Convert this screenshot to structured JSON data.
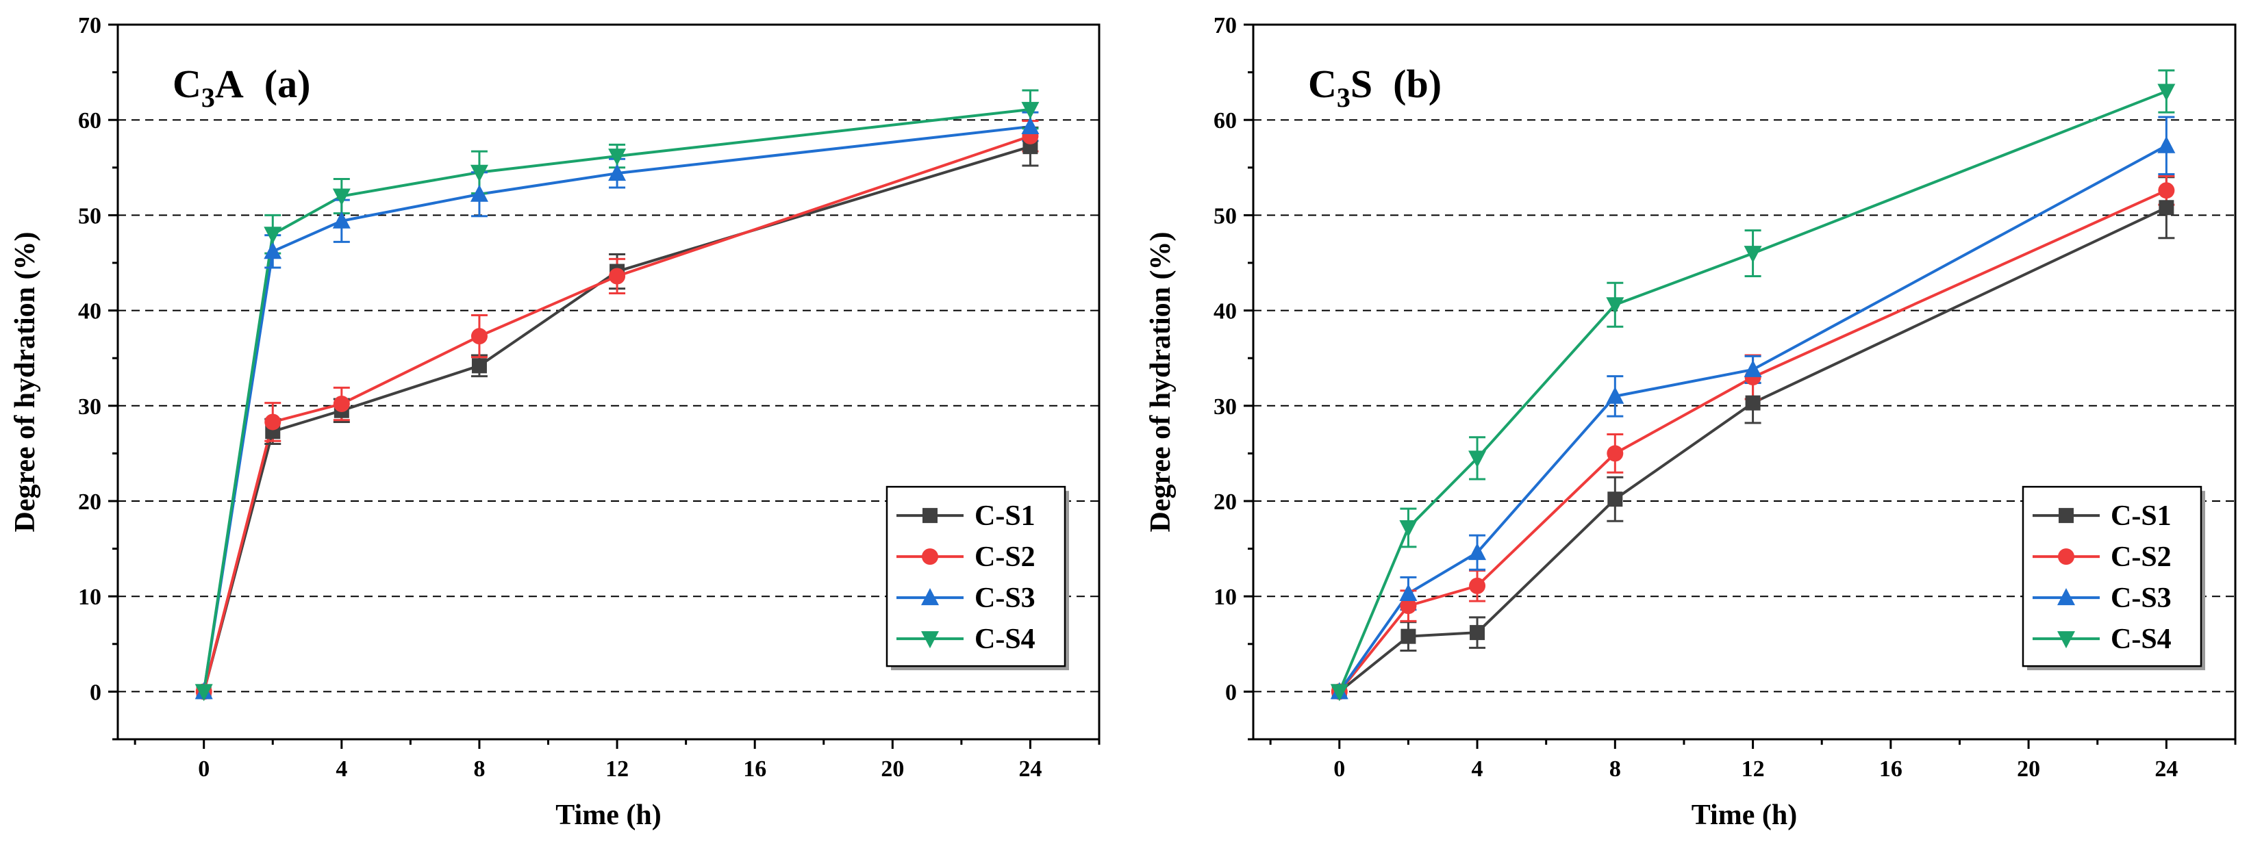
{
  "chart_data": [
    {
      "type": "line",
      "panel_label": "(a)",
      "title_main": "C",
      "title_sub": "3",
      "title_rest": "A",
      "xlabel": "Time (h)",
      "ylabel": "Degree of hydration (%)",
      "xlim": [
        -2.5,
        26
      ],
      "ylim": [
        -5,
        70
      ],
      "xticks": [
        0,
        4,
        8,
        12,
        16,
        20,
        24
      ],
      "yticks": [
        0,
        10,
        20,
        30,
        40,
        50,
        60,
        70
      ],
      "grid": "horizontal dashed",
      "legend_position": "bottom-right",
      "x": [
        0,
        2,
        4,
        8,
        12,
        24
      ],
      "series": [
        {
          "name": "C-S1",
          "color": "#404040",
          "marker": "square",
          "values": [
            0,
            27.3,
            29.5,
            34.2,
            44.1,
            57.2
          ],
          "errors": [
            0,
            1.3,
            1.2,
            1.1,
            1.8,
            2.0
          ]
        },
        {
          "name": "C-S2",
          "color": "#ef3b3b",
          "marker": "circle",
          "values": [
            0,
            28.3,
            30.2,
            37.3,
            43.6,
            58.3
          ],
          "errors": [
            0,
            2.0,
            1.7,
            2.2,
            1.8,
            1.6
          ]
        },
        {
          "name": "C-S3",
          "color": "#1f6fd1",
          "marker": "triangle-up",
          "values": [
            0,
            46.2,
            49.4,
            52.2,
            54.4,
            59.3
          ],
          "errors": [
            0,
            1.7,
            2.2,
            2.3,
            1.5,
            1.5
          ]
        },
        {
          "name": "C-S4",
          "color": "#1aa36b",
          "marker": "triangle-down",
          "values": [
            0,
            48.0,
            52.0,
            54.5,
            56.2,
            61.1
          ],
          "errors": [
            0,
            2.0,
            1.8,
            2.2,
            1.2,
            2.0
          ]
        }
      ]
    },
    {
      "type": "line",
      "panel_label": "(b)",
      "title_main": "C",
      "title_sub": "3",
      "title_rest": "S",
      "xlabel": "Time (h)",
      "ylabel": "Degree of hydration (%)",
      "xlim": [
        -2.5,
        26
      ],
      "ylim": [
        -5,
        70
      ],
      "xticks": [
        0,
        4,
        8,
        12,
        16,
        20,
        24
      ],
      "yticks": [
        0,
        10,
        20,
        30,
        40,
        50,
        60,
        70
      ],
      "grid": "horizontal dashed",
      "legend_position": "bottom-right",
      "x": [
        0,
        2,
        4,
        8,
        12,
        24
      ],
      "series": [
        {
          "name": "C-S1",
          "color": "#404040",
          "marker": "square",
          "values": [
            0,
            5.8,
            6.2,
            20.2,
            30.3,
            50.8
          ],
          "errors": [
            0,
            1.5,
            1.6,
            2.3,
            2.1,
            3.2
          ]
        },
        {
          "name": "C-S2",
          "color": "#ef3b3b",
          "marker": "circle",
          "values": [
            0,
            9.0,
            11.1,
            25.0,
            33.0,
            52.6
          ],
          "errors": [
            0,
            1.6,
            1.6,
            2.0,
            2.3,
            1.5
          ]
        },
        {
          "name": "C-S3",
          "color": "#1f6fd1",
          "marker": "triangle-up",
          "values": [
            0,
            10.3,
            14.6,
            31.0,
            33.8,
            57.3
          ],
          "errors": [
            0,
            1.7,
            1.8,
            2.1,
            1.4,
            3.0
          ]
        },
        {
          "name": "C-S4",
          "color": "#1aa36b",
          "marker": "triangle-down",
          "values": [
            0,
            17.2,
            24.5,
            40.6,
            46.0,
            63.0
          ],
          "errors": [
            0,
            2.0,
            2.2,
            2.3,
            2.4,
            2.2
          ]
        }
      ]
    }
  ]
}
